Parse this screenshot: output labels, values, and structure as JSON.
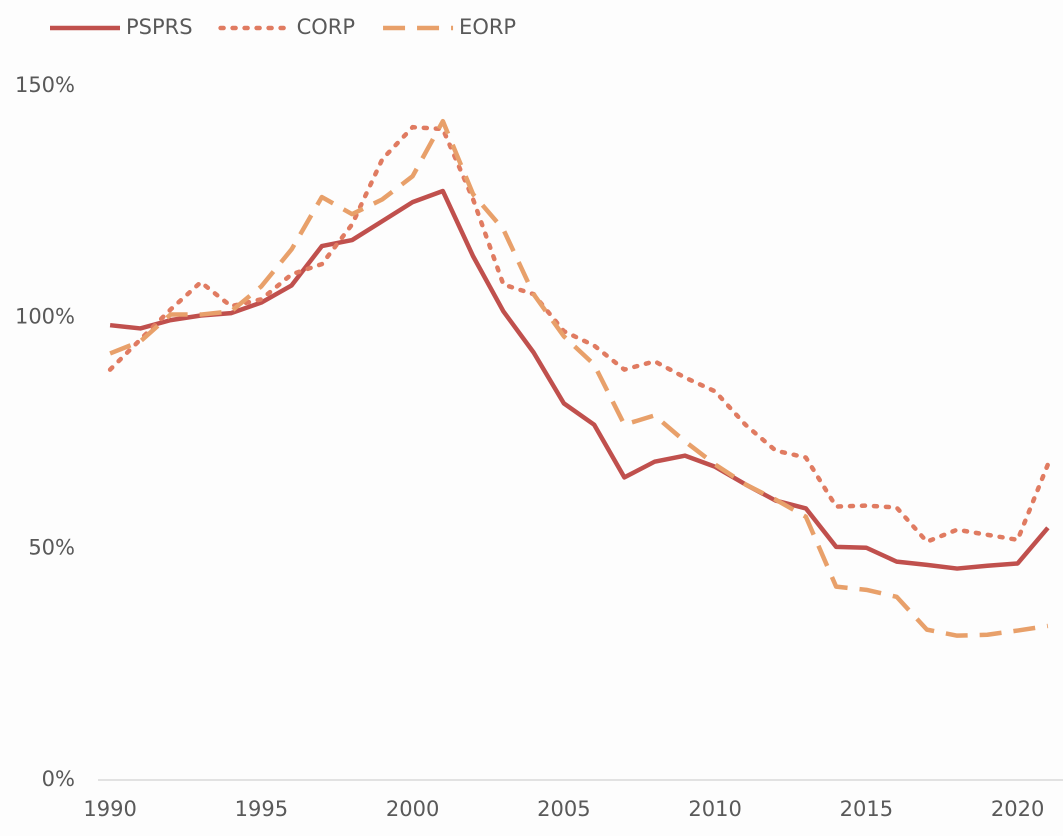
{
  "chart_data": {
    "type": "line",
    "x": [
      1990,
      1991,
      1992,
      1993,
      1994,
      1995,
      1996,
      1997,
      1998,
      1999,
      2000,
      2001,
      2002,
      2003,
      2004,
      2005,
      2006,
      2007,
      2008,
      2009,
      2010,
      2011,
      2012,
      2013,
      2014,
      2015,
      2016,
      2017,
      2018,
      2019,
      2020,
      2021
    ],
    "series": [
      {
        "name": "PSPRS",
        "color": "#c0504d",
        "style": "solid",
        "values": [
          98.3,
          97.6,
          99.4,
          100.4,
          100.9,
          103.2,
          106.9,
          115.4,
          116.7,
          120.8,
          124.9,
          127.3,
          113.2,
          101.3,
          92.4,
          81.4,
          76.8,
          65.4,
          68.8,
          70.1,
          67.7,
          63.9,
          60.4,
          58.7,
          50.4,
          50.2,
          47.2,
          46.5,
          45.7,
          46.3,
          46.8,
          54.5
        ]
      },
      {
        "name": "CORP",
        "color": "#e07b61",
        "style": "dotted",
        "values": [
          88.7,
          95.2,
          101.7,
          107.6,
          102.4,
          103.9,
          109.3,
          111.5,
          120.1,
          134.2,
          141.1,
          140.7,
          125.5,
          107.1,
          105,
          97,
          93.9,
          88.7,
          90.5,
          87,
          84,
          76.8,
          71.2,
          69.7,
          59.1,
          59.3,
          58.9,
          51.5,
          54.1,
          53,
          51.9,
          68.2
        ]
      },
      {
        "name": "EORP",
        "color": "#e8a06a",
        "style": "dashed",
        "values": [
          92.2,
          94.8,
          100.6,
          100.6,
          101.3,
          106.7,
          114.7,
          126,
          122.3,
          125.5,
          130.5,
          142.4,
          126.6,
          119,
          105,
          95.9,
          89.8,
          76.8,
          78.8,
          73.2,
          68.2,
          63.9,
          60.6,
          56.9,
          41.8,
          41.1,
          39.6,
          32.5,
          31.2,
          31.4,
          32.3,
          33.3
        ]
      }
    ],
    "xlim": [
      1989.6,
      2021.5
    ],
    "xticks": [
      1990,
      1995,
      2000,
      2005,
      2010,
      2015,
      2020
    ],
    "ylim": [
      0,
      150
    ],
    "yticks": [
      {
        "value": 0,
        "label": "0%"
      },
      {
        "value": 50,
        "label": "50%"
      },
      {
        "value": 100,
        "label": "100%"
      },
      {
        "value": 150,
        "label": "150%"
      }
    ],
    "grid": false,
    "legend": "top-left"
  }
}
